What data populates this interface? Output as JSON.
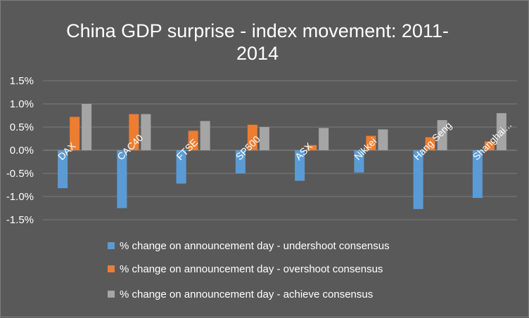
{
  "chart_data": {
    "type": "bar",
    "title": "China GDP surprise - index movement: 2011-2014",
    "title_lines": [
      "China GDP surprise - index movement: 2011-",
      "2014"
    ],
    "xlabel": "",
    "ylabel": "",
    "ylim": [
      -1.5,
      1.5
    ],
    "yticks": [
      1.5,
      1.0,
      0.5,
      0.0,
      -0.5,
      -1.0,
      -1.5
    ],
    "ytick_labels": [
      "1.5%",
      "1.0%",
      "0.5%",
      "0.0%",
      "-0.5%",
      "-1.0%",
      "-1.5%"
    ],
    "grid": true,
    "legend_position": "bottom",
    "categories": [
      "DAX",
      "CAC40",
      "FTSE",
      "SP500",
      "ASX",
      "Nikkei",
      "Hang Seng",
      "Shanghai..."
    ],
    "series": [
      {
        "name": "% change  on announcement day - undershoot consensus",
        "color": "#5b9bd5",
        "values": [
          -0.82,
          -1.25,
          -0.72,
          -0.5,
          -0.66,
          -0.48,
          -1.27,
          -1.03
        ]
      },
      {
        "name": "% change on announcement day - overshoot consensus",
        "color": "#ed7d31",
        "values": [
          0.72,
          0.78,
          0.42,
          0.55,
          0.11,
          0.31,
          0.28,
          0.19
        ]
      },
      {
        "name": "% change on announcement day - achieve consensus",
        "color": "#a5a5a5",
        "values": [
          1.0,
          0.78,
          0.63,
          0.5,
          0.48,
          0.45,
          0.65,
          0.8
        ]
      }
    ]
  }
}
